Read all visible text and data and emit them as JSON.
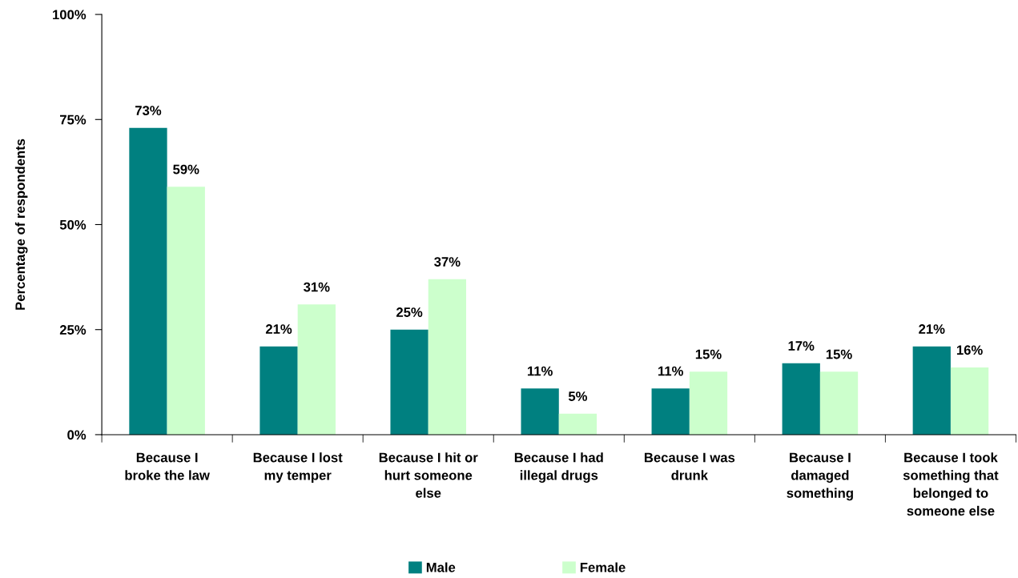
{
  "chart_data": {
    "type": "bar",
    "ylabel": "Percentage of respondents",
    "categories": [
      "Because I\nbroke the law",
      "Because I lost\nmy temper",
      "Because I hit or\nhurt someone\nelse",
      "Because I had\nillegal drugs",
      "Because I was\ndrunk",
      "Because I\ndamaged\nsomething",
      "Because I took\nsomething that\nbelonged to\nsomeone else"
    ],
    "series": [
      {
        "name": "Male",
        "color": "#008080",
        "values": [
          73,
          21,
          25,
          11,
          11,
          17,
          21
        ],
        "value_labels": [
          "73%",
          "21%",
          "25%",
          "11%",
          "11%",
          "17%",
          "21%"
        ]
      },
      {
        "name": "Female",
        "color": "#ccffcc",
        "values": [
          59,
          31,
          37,
          5,
          15,
          15,
          16
        ],
        "value_labels": [
          "59%",
          "31%",
          "37%",
          "5%",
          "15%",
          "15%",
          "16%"
        ]
      }
    ],
    "ylim": [
      0,
      100
    ],
    "yticks": [
      {
        "value": 0,
        "label": "0%"
      },
      {
        "value": 25,
        "label": "25%"
      },
      {
        "value": 50,
        "label": "50%"
      },
      {
        "value": 75,
        "label": "75%"
      },
      {
        "value": 100,
        "label": "100%"
      }
    ],
    "legend": "bottom",
    "grid": false
  }
}
